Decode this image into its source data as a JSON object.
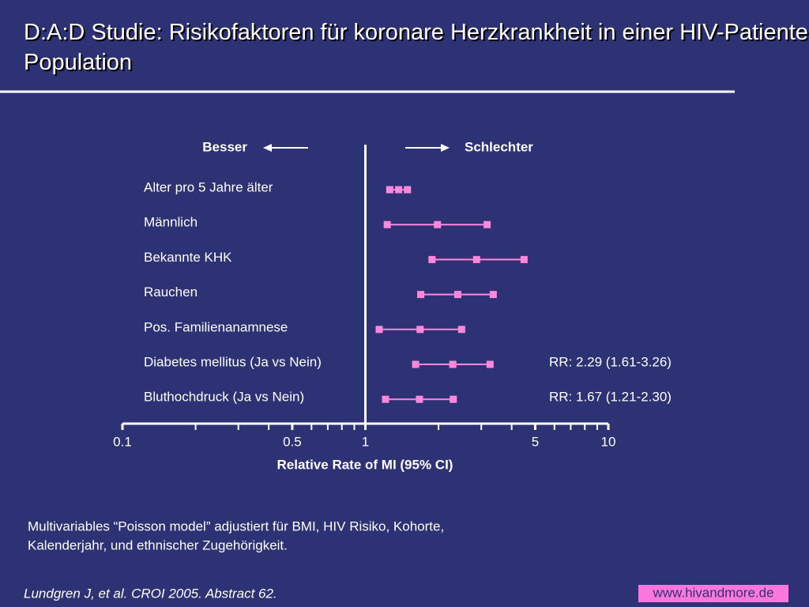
{
  "chart_data": {
    "type": "forest",
    "title": "D:A:D Studie: Risikofaktoren für koronare Herzkrankheit in einer HIV-Patienten Population",
    "left_label": "Besser",
    "right_label": "Schlechter",
    "xlabel": "Relative Rate of MI (95% CI)",
    "categories": [
      "Alter pro 5 Jahre älter",
      "Männlich",
      "Bekannte KHK",
      "Rauchen",
      "Pos. Familienanamnese",
      "Diabetes mellitus (Ja vs Nein)",
      "Bluthochdruck (Ja vs Nein)"
    ],
    "values": [
      1.37,
      1.98,
      2.87,
      2.4,
      1.68,
      2.29,
      1.67
    ],
    "lower": [
      1.26,
      1.23,
      1.88,
      1.69,
      1.14,
      1.61,
      1.21
    ],
    "upper": [
      1.49,
      3.17,
      4.5,
      3.36,
      2.49,
      3.26,
      2.3
    ],
    "value_labels": [
      null,
      null,
      null,
      null,
      null,
      "RR: 2.29 (1.61-3.26)",
      "RR: 1.67 (1.21-2.30)"
    ],
    "color": "#ff88dd",
    "xscale": "log",
    "xlim": [
      0.1,
      10
    ],
    "xticks": [
      0.1,
      0.5,
      1,
      5,
      10
    ],
    "minor_xticks": [
      0.2,
      0.3,
      0.4,
      0.6,
      0.7,
      0.8,
      0.9,
      2,
      3,
      4,
      6,
      7,
      8,
      9
    ],
    "reference_line": 1
  },
  "footnote": [
    "Multivariables “Poisson model” adjustiert für BMI, HIV Risiko, Kohorte,",
    "Kalenderjahr, und ethnischer Zugehörigkeit."
  ],
  "citation": "Lundgren J, et al. CROI 2005. Abstract 62.",
  "website": "www.hivandmore.de"
}
